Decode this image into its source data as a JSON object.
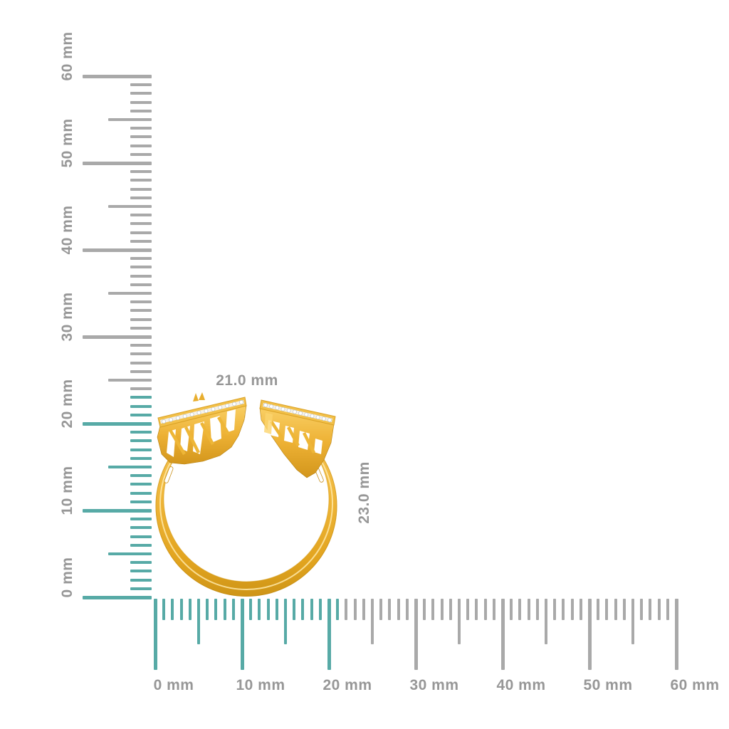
{
  "canvas": {
    "background_color": "#ffffff"
  },
  "rulers": {
    "unit": "mm",
    "highlight_color": "#57AAA6",
    "default_color": "#A9A9A9",
    "label_color": "#979797",
    "vertical": {
      "range_mm": [
        0,
        60
      ],
      "major_labels": [
        "0 mm",
        "10 mm",
        "20 mm",
        "30 mm",
        "40 mm",
        "50 mm",
        "60 mm"
      ],
      "highlighted_span_mm": 23
    },
    "horizontal": {
      "range_mm": [
        0,
        60
      ],
      "major_labels": [
        "0 mm",
        "10 mm",
        "20 mm",
        "30 mm",
        "40 mm",
        "50 mm",
        "60 mm"
      ],
      "highlighted_span_mm": 21
    }
  },
  "dimension_annotations": {
    "width_label": "21.0 mm",
    "height_label": "23.0 mm"
  },
  "ring": {
    "metal_color": "#EFB73C",
    "metal_highlight_color": "#FFE9A8",
    "metal_shadow_color": "#C68E14",
    "stone_color": "#FFFFFF"
  }
}
